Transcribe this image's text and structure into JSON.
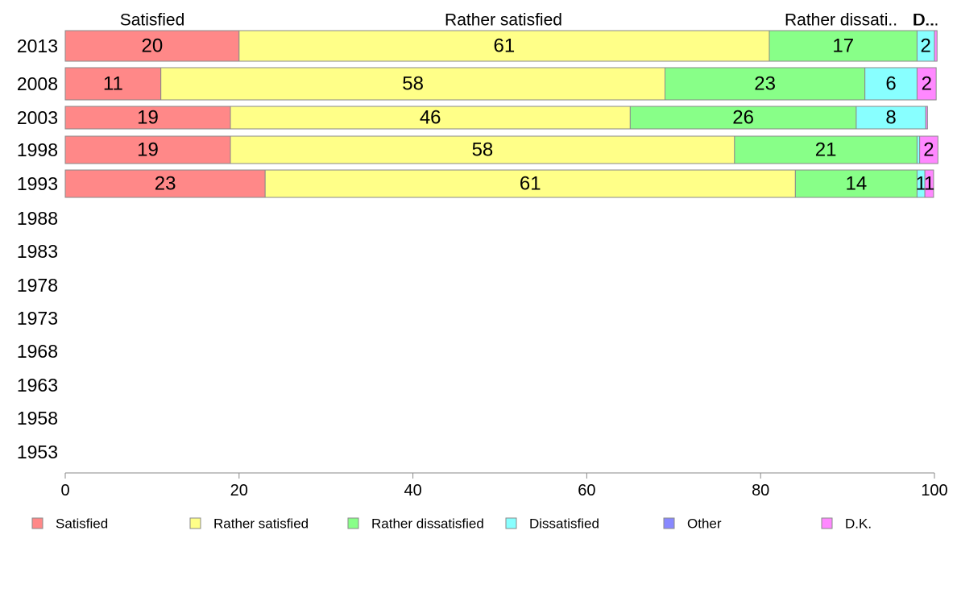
{
  "chart_data": {
    "type": "bar",
    "orientation": "horizontal",
    "stacked": true,
    "categories": [
      "2013",
      "2008",
      "2003",
      "1998",
      "1993",
      "1988",
      "1983",
      "1978",
      "1973",
      "1968",
      "1963",
      "1958",
      "1953"
    ],
    "column_headers": [
      "Satisfied",
      "Rather satisfied",
      "Rather dissati..",
      "D..",
      "D..."
    ],
    "series": [
      {
        "name": "Satisfied",
        "color": "#ff8888",
        "values": [
          20,
          11,
          19,
          19,
          23,
          null,
          null,
          null,
          null,
          null,
          null,
          null,
          null
        ],
        "labels": [
          "20",
          "11",
          "19",
          "19",
          "23"
        ]
      },
      {
        "name": "Rather satisfied",
        "color": "#ffff88",
        "values": [
          61,
          58,
          46,
          58,
          61,
          null,
          null,
          null,
          null,
          null,
          null,
          null,
          null
        ],
        "labels": [
          "61",
          "58",
          "46",
          "58",
          "61"
        ]
      },
      {
        "name": "Rather dissatisfied",
        "color": "#88ff88",
        "values": [
          17,
          23,
          26,
          21,
          14,
          null,
          null,
          null,
          null,
          null,
          null,
          null,
          null
        ],
        "labels": [
          "17",
          "23",
          "26",
          "21",
          "14"
        ]
      },
      {
        "name": "Dissatisfied",
        "color": "#88ffff",
        "values": [
          2,
          6,
          8,
          0.3,
          0.9,
          null,
          null,
          null,
          null,
          null,
          null,
          null,
          null
        ],
        "labels": [
          "2",
          "6",
          "8",
          "",
          "1"
        ]
      },
      {
        "name": "Other",
        "color": "#8888ff",
        "values": [
          0,
          0,
          0,
          0,
          0,
          null,
          null,
          null,
          null,
          null,
          null,
          null,
          null
        ],
        "labels": [
          "",
          "",
          "",
          "",
          ""
        ]
      },
      {
        "name": "D.K.",
        "color": "#ff88ff",
        "values": [
          0.3,
          2.2,
          0.2,
          2.1,
          1.0,
          null,
          null,
          null,
          null,
          null,
          null,
          null,
          null
        ],
        "labels": [
          "",
          "2",
          "",
          "2",
          "1"
        ]
      }
    ],
    "xlim": [
      0,
      100
    ],
    "xticks": [
      "0",
      "20",
      "40",
      "60",
      "80",
      "100"
    ],
    "grid": false,
    "legend_position": "bottom"
  }
}
